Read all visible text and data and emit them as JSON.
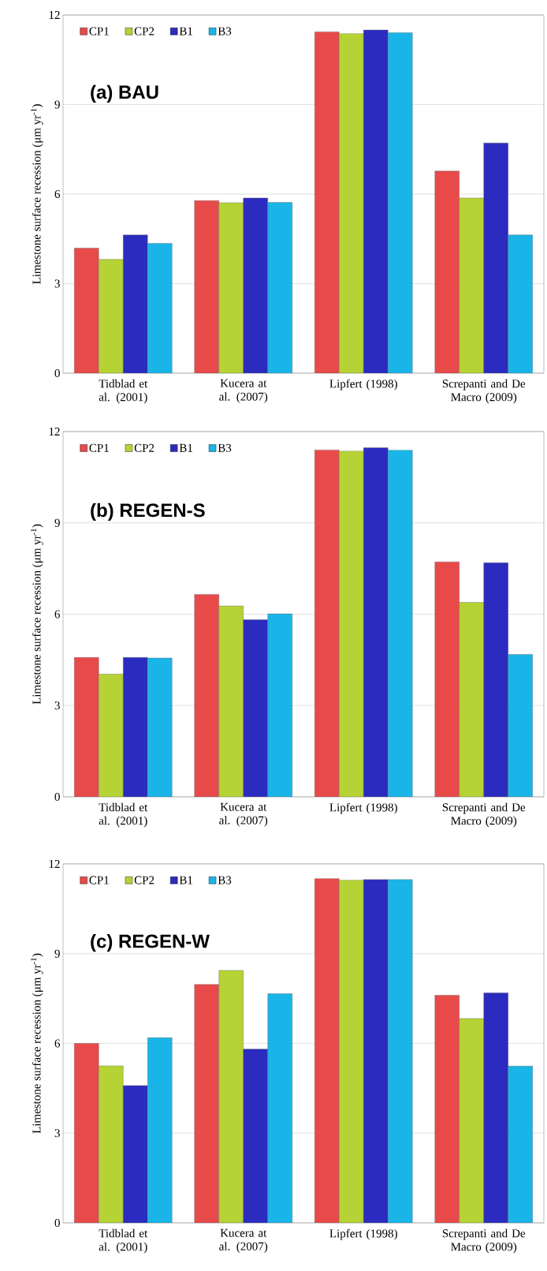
{
  "chart_data": [
    {
      "type": "bar",
      "title": "(a) BAU",
      "ylabel": "Limestone  surface recession (μm yr$^{-1}$)",
      "categories": [
        "Tidblad et al. (2001)",
        "Kucera at al. (2007)",
        "Lipfert (1998)",
        "Screpanti and De Macro (2009)"
      ],
      "series": [
        {
          "name": "CP1",
          "color": "#e84a4a",
          "values": [
            4.19,
            5.78,
            11.44,
            6.77
          ]
        },
        {
          "name": "CP2",
          "color": "#b5d334",
          "values": [
            3.81,
            5.71,
            11.38,
            5.87
          ]
        },
        {
          "name": "B1",
          "color": "#2b2bbf",
          "values": [
            4.63,
            5.87,
            11.5,
            7.71
          ]
        },
        {
          "name": "B3",
          "color": "#19b5e8",
          "values": [
            4.35,
            5.72,
            11.41,
            4.63
          ]
        }
      ],
      "ylim": [
        0,
        12
      ],
      "yticks": [
        0,
        3,
        6,
        9,
        12
      ],
      "grid": "y",
      "legend": "top left"
    },
    {
      "type": "bar",
      "title": "(b) REGEN-S",
      "ylabel": "Limestone  surface recession (μm yr$^{-1}$)",
      "categories": [
        "Tidblad et al. (2001)",
        "Kucera at al. (2007)",
        "Lipfert (1998)",
        "Screpanti and De Macro (2009)"
      ],
      "series": [
        {
          "name": "CP1",
          "color": "#e84a4a",
          "values": [
            4.58,
            6.65,
            11.4,
            7.72
          ]
        },
        {
          "name": "CP2",
          "color": "#b5d334",
          "values": [
            4.03,
            6.27,
            11.36,
            6.39
          ]
        },
        {
          "name": "B1",
          "color": "#2b2bbf",
          "values": [
            4.58,
            5.82,
            11.47,
            7.69
          ]
        },
        {
          "name": "B3",
          "color": "#19b5e8",
          "values": [
            4.56,
            6.01,
            11.39,
            4.68
          ]
        }
      ],
      "ylim": [
        0,
        12
      ],
      "yticks": [
        0,
        3,
        6,
        9,
        12
      ],
      "grid": "y",
      "legend": "top left"
    },
    {
      "type": "bar",
      "title": "(c) REGEN-W",
      "ylabel": "Limestone  surface recession (μm yr$^{-1}$)",
      "categories": [
        "Tidblad et al. (2001)",
        "Kucera at al. (2007)",
        "Lipfert (1998)",
        "Screpanti and De Macro (2009)"
      ],
      "series": [
        {
          "name": "CP1",
          "color": "#e84a4a",
          "values": [
            6.0,
            7.97,
            11.51,
            7.61
          ]
        },
        {
          "name": "CP2",
          "color": "#b5d334",
          "values": [
            5.25,
            8.44,
            11.46,
            6.83
          ]
        },
        {
          "name": "B1",
          "color": "#2b2bbf",
          "values": [
            4.59,
            5.81,
            11.48,
            7.69
          ]
        },
        {
          "name": "B3",
          "color": "#19b5e8",
          "values": [
            6.19,
            7.66,
            11.48,
            5.24
          ]
        }
      ],
      "ylim": [
        0,
        12
      ],
      "yticks": [
        0,
        3,
        6,
        9,
        12
      ],
      "grid": "y",
      "legend": "top left"
    }
  ]
}
